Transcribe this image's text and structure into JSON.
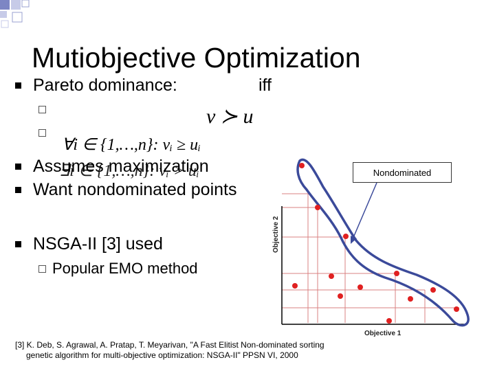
{
  "slide": {
    "title": "Mutiobjective Optimization",
    "bullets": [
      {
        "text": "Pareto dominance:",
        "suffix": "iff"
      },
      {
        "text": "Assumes maximization"
      },
      {
        "text": "Want nondominated points"
      },
      {
        "text": "NSGA-II [3] used"
      }
    ],
    "sub_bullets": [
      {
        "text": "Popular EMO method"
      }
    ],
    "math": {
      "dominance": "v ≻ u",
      "cond1": "∀i ∈ {1,…,n}: vᵢ ≥ uᵢ",
      "cond2": "∃i ∈ {1,…,n}: vᵢ > uᵢ"
    },
    "footnote_line1": "[3] K. Deb, S. Agrawal, A. Pratap, T. Meyarivan, \"A Fast Elitist Non-dominated sorting",
    "footnote_line2": "genetic algorithm for multi-objective optimization: NSGA-II\" PPSN VI, 2000"
  },
  "figure": {
    "callout_label": "Nondominated",
    "xlabel": "Objective 1",
    "ylabel": "Objective 2",
    "colors": {
      "front": "#3b4a9a",
      "points": "#e02020",
      "grid": "#d98080",
      "callout_arrow": "#3b4a9a"
    }
  }
}
